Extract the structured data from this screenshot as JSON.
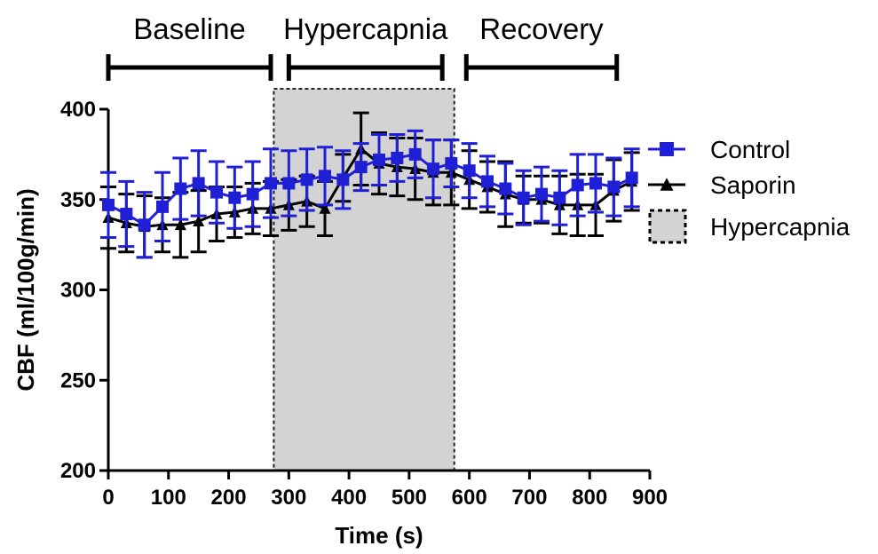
{
  "chart_data": {
    "type": "line",
    "xlabel": "Time (s)",
    "ylabel": "CBF (ml/100g/min)",
    "xlim": [
      0,
      900
    ],
    "ylim": [
      200,
      400
    ],
    "xticks": [
      0,
      100,
      200,
      300,
      400,
      500,
      600,
      700,
      800,
      900
    ],
    "yticks": [
      200,
      250,
      300,
      350,
      400
    ],
    "grid": false,
    "legend_position": "right",
    "phases": [
      {
        "label": "Baseline",
        "start": 0,
        "end": 270
      },
      {
        "label": "Hypercapnia",
        "start": 300,
        "end": 555
      },
      {
        "label": "Recovery",
        "start": 595,
        "end": 845
      }
    ],
    "shaded_region": {
      "name": "Hypercapnia",
      "start": 275,
      "end": 575,
      "color": "#d3d3d3"
    },
    "x": [
      0,
      30,
      60,
      90,
      120,
      150,
      180,
      210,
      240,
      270,
      300,
      330,
      360,
      390,
      420,
      450,
      480,
      510,
      540,
      570,
      600,
      630,
      660,
      690,
      720,
      750,
      780,
      810,
      840,
      870
    ],
    "series": [
      {
        "name": "Control",
        "color": "#1f1fd6",
        "marker": "square",
        "values": [
          347,
          342,
          336,
          346,
          356,
          359,
          354,
          351,
          353,
          359,
          359,
          361,
          363,
          361,
          368,
          372,
          373,
          375,
          367,
          370,
          366,
          360,
          356,
          351,
          353,
          351,
          358,
          359,
          357,
          362
        ],
        "errors": [
          18,
          18,
          18,
          19,
          17,
          18,
          17,
          17,
          18,
          19,
          18,
          17,
          16,
          16,
          13,
          14,
          13,
          13,
          16,
          13,
          15,
          14,
          14,
          15,
          15,
          15,
          17,
          16,
          16,
          16
        ]
      },
      {
        "name": "Saporin",
        "color": "#000000",
        "marker": "triangle",
        "values": [
          340,
          337,
          335,
          336,
          336,
          338,
          342,
          343,
          345,
          345,
          347,
          349,
          345,
          362,
          378,
          370,
          368,
          367,
          365,
          365,
          361,
          357,
          353,
          350,
          350,
          347,
          347,
          347,
          355,
          360
        ],
        "errors": [
          17,
          16,
          17,
          15,
          18,
          17,
          15,
          14,
          14,
          15,
          14,
          14,
          15,
          13,
          20,
          17,
          16,
          17,
          18,
          18,
          16,
          14,
          18,
          13,
          13,
          16,
          17,
          17,
          17,
          16
        ]
      }
    ],
    "legend": [
      "Control",
      "Saporin",
      "Hypercapnia"
    ]
  }
}
